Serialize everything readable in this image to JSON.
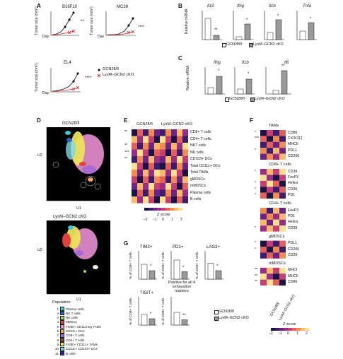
{
  "panels": {
    "A": "A",
    "B": "B",
    "C": "C",
    "D": "D",
    "E": "E",
    "F": "F",
    "G": "G"
  },
  "panelA": {
    "plots": [
      {
        "title": "B16F10",
        "sig": "**"
      },
      {
        "title": "MC38",
        "sig": "****"
      },
      {
        "title": "EL4",
        "sig": "****"
      }
    ],
    "ylabel": "Tumor size (mm²)",
    "xlabel": "Day",
    "legend": [
      {
        "label": "GCN2fl/fl",
        "marker": "diamond"
      },
      {
        "label": "LysM–GCN2 cKO",
        "marker": "x"
      }
    ]
  },
  "panelB": {
    "ylabel": "Relative mRNA",
    "genes": [
      "Il10",
      "Ifng",
      "Il1b",
      "Tnfa"
    ],
    "sigs": [
      "**",
      "*",
      "*",
      "*"
    ],
    "legend": [
      "GCN2fl/fl",
      "LysM–GCN2 cKO"
    ]
  },
  "panelC": {
    "ylabel": "Relative mRNA",
    "genes": [
      "Ifng",
      "Il1b",
      "Il6"
    ],
    "sigs": [
      "*",
      "*",
      "**"
    ],
    "legend": [
      "GCN2fl/fl",
      "LysM–GCN2 cKO"
    ]
  },
  "panelD": {
    "top_title": "GCN2fl/fl",
    "bottom_title": "LysM–GCN2 cKO",
    "xlabel": "U1",
    "ylabel": "U2",
    "population_title": "Population",
    "populations": [
      {
        "n": "1",
        "name": "Plasma cells",
        "color": "#3ec7d6"
      },
      {
        "n": "2",
        "name": "NK T cells",
        "color": "#2a62c9"
      },
      {
        "n": "3",
        "name": "NK cells",
        "color": "#9fd66b"
      },
      {
        "n": "4",
        "name": "MDSCs",
        "color": "#e0413a"
      },
      {
        "n": "5",
        "name": "F4/80+ CD11cneg TAMs",
        "color": "#e98fd3"
      },
      {
        "n": "6",
        "name": "CD11c+ DCs",
        "color": "#f2a05a"
      },
      {
        "n": "7",
        "name": "CD8+ T cells",
        "color": "#a86bd1"
      },
      {
        "n": "8",
        "name": "CD4+ T cells",
        "color": "#8a4a2a"
      },
      {
        "n": "9",
        "name": "F4/80+ CD11c+ TAMs",
        "color": "#ece35a"
      },
      {
        "n": "10",
        "name": "CD11c+ CD103+ DCs",
        "color": "#7dd9e8"
      },
      {
        "n": "11",
        "name": "B cells",
        "color": "#1b2b8f"
      }
    ]
  },
  "panelE": {
    "col_labels": [
      "GCN2fl/fl",
      "LysM–GCN2 cKO"
    ],
    "rows": [
      "CD8+ T cells",
      "CD4+ T cells",
      "NKT cells",
      "NK cells",
      "CD103+ DCs",
      "Total CD11c+ DCs",
      "Total TAMs",
      "gMDSCs",
      "mMDSCs",
      "Plasma cells",
      "B cells"
    ],
    "row_sigs": [
      "**",
      "",
      "**",
      "***",
      "**",
      "",
      "",
      "",
      "",
      "",
      ""
    ],
    "zscore_label": "Z score",
    "ticks": [
      "−2",
      "−1",
      "0",
      "1",
      "2"
    ]
  },
  "panelF": {
    "groups": [
      {
        "title": "TAMs",
        "markers": [
          "CD86",
          "CX3CR1",
          "MHCII",
          "PDL1",
          "CD206"
        ],
        "sigs": [
          "*",
          "***",
          "",
          "*",
          ""
        ]
      },
      {
        "title": "CD8+ T cells",
        "markers": [
          "CD39",
          "FoxP3",
          "Helios",
          "CD36",
          "PD1"
        ],
        "sigs": [
          "*",
          "",
          "*",
          "*",
          "*"
        ]
      },
      {
        "title": "CD4+ T cells",
        "markers": [
          "FoxP3",
          "PD1",
          "Helios",
          "CD39"
        ],
        "sigs": [
          "",
          "",
          "",
          "*"
        ]
      },
      {
        "title": "gMDSCs",
        "markers": [
          "PDL1",
          "CD206",
          "CD39"
        ],
        "sigs": [
          "*",
          "*",
          ""
        ]
      },
      {
        "title": "mMDSCs",
        "markers": [
          "MHCI",
          "MHCII",
          "CD86"
        ],
        "sigs": [
          "**",
          "**",
          "**"
        ]
      }
    ],
    "col_labels": [
      "GCN2fl/fl",
      "LysM–GCN2 cKO"
    ],
    "zscore_label": "Z score",
    "ticks": [
      "−2",
      "−1",
      "0",
      "1",
      "2"
    ]
  },
  "panelG": {
    "plots": [
      {
        "title": "TIM3+",
        "ylabel": "% of CD8+ T cells",
        "sig": "*"
      },
      {
        "title": "PD1+",
        "ylabel": "% of CD8+ T cells",
        "sig": "*"
      },
      {
        "title": "LAG3+",
        "ylabel": "% of CD8+ T cells",
        "sig": "*"
      },
      {
        "title": "TIGIT+",
        "ylabel": "% of CD8+ T cells",
        "sig": "*"
      },
      {
        "title": "Positive for all 4 exhaustion markers",
        "ylabel": "% of CD8+ T cells",
        "sig": "**"
      }
    ],
    "legend": [
      "GCN2fl/fl",
      "LysM–GCN2 cKO"
    ]
  },
  "colors": {
    "ko_red": "#d32626",
    "wt_black": "#111111",
    "ko_bar": "#9a9a9a"
  }
}
